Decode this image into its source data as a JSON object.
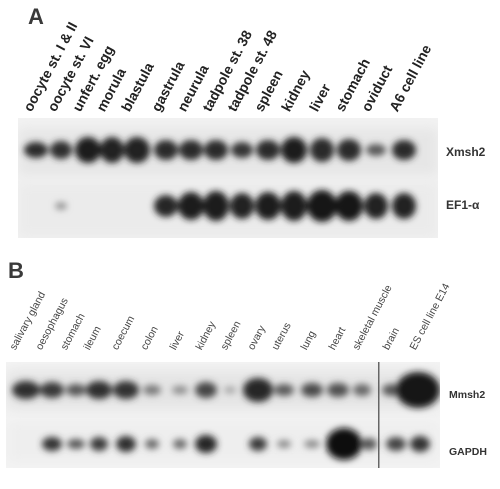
{
  "panel_a": {
    "letter": "A",
    "lanes": [
      "oocyte st. I & II",
      "oocyte st. VI",
      "unfert. egg",
      "morula",
      "blastula",
      "gastrula",
      "neurula",
      "tadpole st. 38",
      "tadpole st. 48",
      "spleen",
      "kidney",
      "liver",
      "stomach",
      "oviduct",
      "A6 cell line"
    ],
    "band_labels": [
      "Xmsh2",
      "EF1-α"
    ]
  },
  "panel_b": {
    "letter": "B",
    "lanes": [
      "salivary gland",
      "oesophagus",
      "stomach",
      "ileum",
      "coecum",
      "colon",
      "liver",
      "kidney",
      "spleen",
      "ovary",
      "uterus",
      "lung",
      "heart",
      "skeletal muscle",
      "brain",
      "ES cell line E14"
    ],
    "band_labels": [
      "Mmsh2",
      "GAPDH"
    ]
  }
}
